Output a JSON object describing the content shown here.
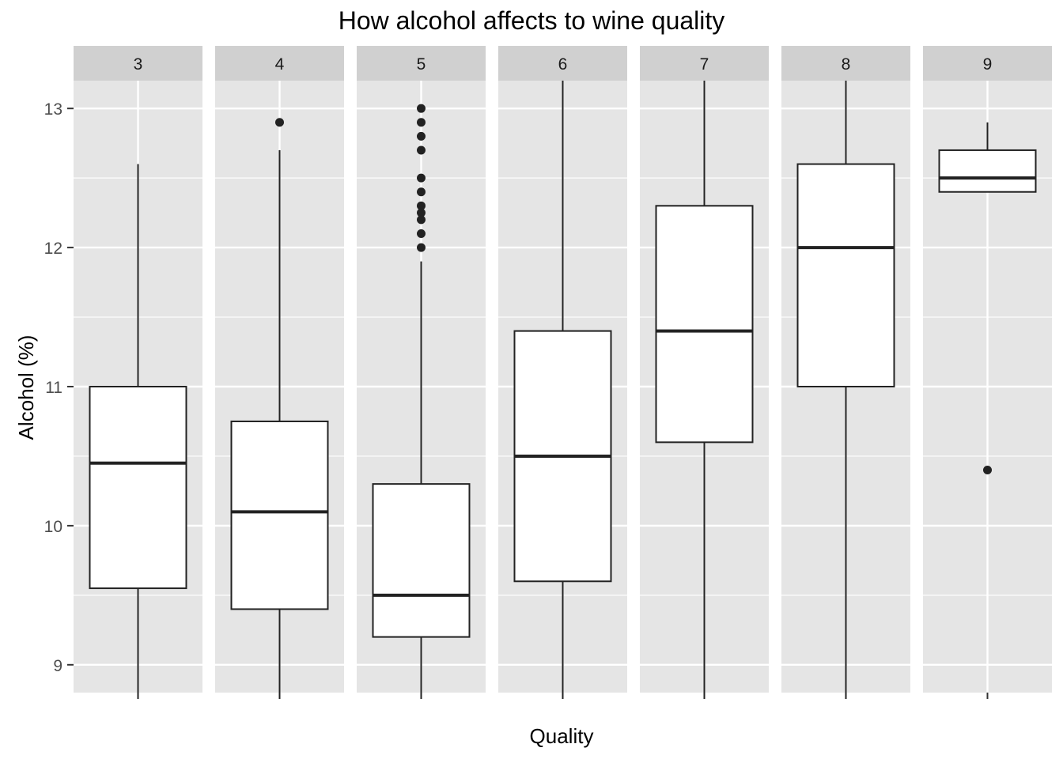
{
  "chart_data": {
    "type": "boxplot",
    "title": "How alcohol affects to wine quality",
    "xlabel": "Quality",
    "ylabel": "Alcohol (%)",
    "facet_by": "quality",
    "y_ticks": [
      9,
      10,
      11,
      12,
      13
    ],
    "ylim": [
      8.8,
      13.2
    ],
    "grid": true,
    "colors": {
      "panel_bg": "#e5e5e5",
      "strip_bg": "#d0d0d0",
      "grid": "#ffffff",
      "box_fill": "#ffffff",
      "box_stroke": "#222222",
      "outlier": "#222222"
    },
    "facets": [
      {
        "label": "3",
        "whisker_low": 8.8,
        "q1": 9.55,
        "median": 10.45,
        "q3": 11.0,
        "whisker_high": 12.6,
        "outliers": []
      },
      {
        "label": "4",
        "whisker_low": 8.8,
        "q1": 9.4,
        "median": 10.1,
        "q3": 10.75,
        "whisker_high": 12.7,
        "outliers": [
          12.9
        ]
      },
      {
        "label": "5",
        "whisker_low": 8.8,
        "q1": 9.2,
        "median": 9.5,
        "q3": 10.3,
        "whisker_high": 11.9,
        "outliers": [
          12.0,
          12.1,
          12.2,
          12.25,
          12.3,
          12.4,
          12.5,
          12.7,
          12.8,
          12.9,
          13.0
        ]
      },
      {
        "label": "6",
        "whisker_low": 8.8,
        "q1": 9.6,
        "median": 10.5,
        "q3": 11.4,
        "whisker_high": 13.2,
        "outliers": []
      },
      {
        "label": "7",
        "whisker_low": 8.8,
        "q1": 10.6,
        "median": 11.4,
        "q3": 12.3,
        "whisker_high": 13.2,
        "outliers": []
      },
      {
        "label": "8",
        "whisker_low": 8.8,
        "q1": 11.0,
        "median": 12.0,
        "q3": 12.6,
        "whisker_high": 13.2,
        "outliers": []
      },
      {
        "label": "9",
        "whisker_low": 12.4,
        "q1": 12.4,
        "median": 12.5,
        "q3": 12.7,
        "whisker_high": 12.9,
        "outliers": [
          10.4
        ]
      }
    ]
  }
}
